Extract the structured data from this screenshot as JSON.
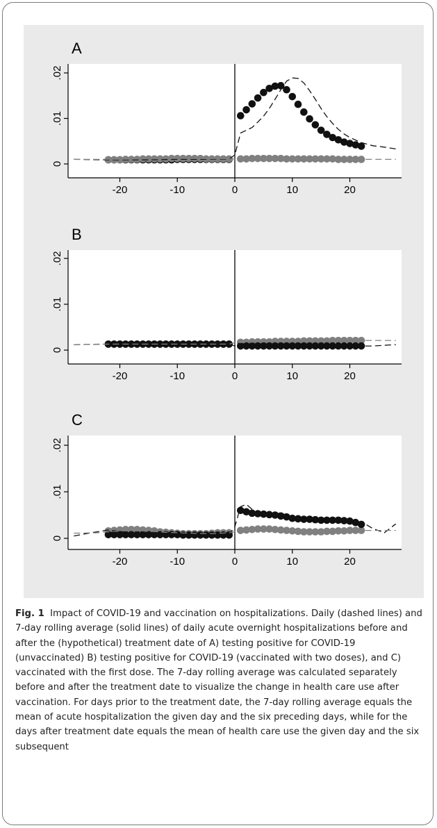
{
  "figure": {
    "caption_label": "Fig. 1",
    "caption_text": "Impact of COVID-19 and vaccination on hospitalizations. Daily (dashed lines) and 7-day rolling average (solid lines) of daily acute overnight hospitalizations before and after the (hypothetical) treatment date of A) testing positive for COVID-19 (unvaccinated) B) testing positive for COVID-19 (vaccinated with two doses), and C) vaccinated with the first dose. The 7-day rolling average was calculated separately before and after the treatment date to visualize the change in health care use after vaccination. For days prior to the treatment date, the 7-day rolling average equals the mean of acute hospitalization the given day and the six preceding days, while for the days after treatment date equals the mean of health care use the given day and the six subsequent"
  },
  "colors": {
    "dark_series": "#111111",
    "gray_series": "#808080",
    "panel_bg": "#eaeaea",
    "plot_bg": "#ffffff"
  },
  "chart_data": [
    {
      "type": "scatter",
      "panel": "A",
      "xlim": [
        -29,
        29
      ],
      "ylim": [
        0,
        0.02
      ],
      "xticks": [
        -20,
        -10,
        0,
        10,
        20
      ],
      "xtick_labels": [
        "-20",
        "-10",
        "0",
        "10",
        "20"
      ],
      "yticks": [
        0,
        0.01,
        0.02
      ],
      "ytick_labels": [
        "0",
        ".01",
        ".02"
      ],
      "treatment_line_x": 0,
      "series": [
        {
          "style": "dots",
          "color": "dark",
          "x": [
            -22,
            -21,
            -20,
            -19,
            -18,
            -17,
            -16,
            -15,
            -14,
            -13,
            -12,
            -11,
            -10,
            -9,
            -8,
            -7,
            -6,
            -5,
            -4,
            -3,
            -2,
            -1,
            1,
            2,
            3,
            4,
            5,
            6,
            7,
            8,
            9,
            10,
            11,
            12,
            13,
            14,
            15,
            16,
            17,
            18,
            19,
            20,
            21,
            22
          ],
          "y": [
            0.0009,
            0.0009,
            0.0009,
            0.0009,
            0.0009,
            0.0009,
            0.0009,
            0.0009,
            0.0009,
            0.0009,
            0.0009,
            0.0009,
            0.001,
            0.001,
            0.001,
            0.001,
            0.001,
            0.001,
            0.001,
            0.001,
            0.001,
            0.001,
            0.0106,
            0.0119,
            0.0132,
            0.0145,
            0.0157,
            0.0166,
            0.0171,
            0.0172,
            0.0163,
            0.0148,
            0.0131,
            0.0114,
            0.0099,
            0.0086,
            0.0074,
            0.0065,
            0.0058,
            0.0053,
            0.0048,
            0.0045,
            0.0042,
            0.0039
          ]
        },
        {
          "style": "dots",
          "color": "gray",
          "x": [
            -22,
            -21,
            -20,
            -19,
            -18,
            -17,
            -16,
            -15,
            -14,
            -13,
            -12,
            -11,
            -10,
            -9,
            -8,
            -7,
            -6,
            -5,
            -4,
            -3,
            -2,
            -1,
            1,
            2,
            3,
            4,
            5,
            6,
            7,
            8,
            9,
            10,
            11,
            12,
            13,
            14,
            15,
            16,
            17,
            18,
            19,
            20,
            21,
            22
          ],
          "y": [
            0.0009,
            0.0009,
            0.0009,
            0.001,
            0.001,
            0.001,
            0.0011,
            0.0011,
            0.0011,
            0.0011,
            0.0011,
            0.0012,
            0.0012,
            0.0012,
            0.0012,
            0.0012,
            0.0012,
            0.0011,
            0.0011,
            0.0011,
            0.0011,
            0.0011,
            0.0011,
            0.0011,
            0.0012,
            0.0012,
            0.0012,
            0.0012,
            0.0012,
            0.0012,
            0.0011,
            0.0011,
            0.0011,
            0.0011,
            0.0011,
            0.0011,
            0.0011,
            0.0011,
            0.0011,
            0.001,
            0.001,
            0.001,
            0.001,
            0.001
          ]
        },
        {
          "style": "dashed",
          "color": "dark",
          "x": [
            -28,
            -22,
            -15,
            -10,
            -5,
            -1,
            0,
            1,
            2,
            3,
            4,
            5,
            6,
            7,
            8,
            9,
            10,
            11,
            12,
            13,
            14,
            15,
            16,
            17,
            18,
            19,
            20,
            22,
            24,
            26,
            28
          ],
          "y": [
            0.001,
            0.0009,
            0.0009,
            0.001,
            0.001,
            0.001,
            0.002,
            0.0068,
            0.0074,
            0.008,
            0.0092,
            0.0105,
            0.0122,
            0.0142,
            0.0163,
            0.0182,
            0.0189,
            0.0188,
            0.0178,
            0.0161,
            0.0142,
            0.0122,
            0.0104,
            0.0089,
            0.0076,
            0.0066,
            0.0058,
            0.0047,
            0.004,
            0.0037,
            0.0033
          ]
        },
        {
          "style": "dashed",
          "color": "gray",
          "x": [
            -28,
            -20,
            -10,
            -1,
            0,
            5,
            10,
            15,
            20,
            25,
            28
          ],
          "y": [
            0.001,
            0.001,
            0.0012,
            0.0011,
            0.0011,
            0.0012,
            0.0011,
            0.0011,
            0.001,
            0.001,
            0.001
          ]
        }
      ]
    },
    {
      "type": "scatter",
      "panel": "B",
      "xlim": [
        -29,
        29
      ],
      "ylim": [
        0,
        0.02
      ],
      "xticks": [
        -20,
        -10,
        0,
        10,
        20
      ],
      "xtick_labels": [
        "-20",
        "-10",
        "0",
        "10",
        "20"
      ],
      "yticks": [
        0,
        0.01,
        0.02
      ],
      "ytick_labels": [
        "0",
        ".01",
        ".02"
      ],
      "treatment_line_x": 0,
      "series": [
        {
          "style": "dots",
          "color": "gray",
          "x": [
            -22,
            -21,
            -20,
            -19,
            -18,
            -17,
            -16,
            -15,
            -14,
            -13,
            -12,
            -11,
            -10,
            -9,
            -8,
            -7,
            -6,
            -5,
            -4,
            -3,
            -2,
            -1,
            1,
            2,
            3,
            4,
            5,
            6,
            7,
            8,
            9,
            10,
            11,
            12,
            13,
            14,
            15,
            16,
            17,
            18,
            19,
            20,
            21,
            22
          ],
          "y": [
            0.0013,
            0.0013,
            0.0013,
            0.0013,
            0.0013,
            0.0013,
            0.0013,
            0.0013,
            0.0013,
            0.0013,
            0.0013,
            0.0013,
            0.0013,
            0.0013,
            0.0013,
            0.0013,
            0.0013,
            0.0013,
            0.0013,
            0.0013,
            0.0013,
            0.0013,
            0.0017,
            0.0017,
            0.0018,
            0.0018,
            0.0018,
            0.0018,
            0.0019,
            0.0019,
            0.0019,
            0.0019,
            0.0019,
            0.002,
            0.002,
            0.002,
            0.002,
            0.002,
            0.0021,
            0.0021,
            0.0021,
            0.0021,
            0.0021,
            0.0021
          ]
        },
        {
          "style": "dots",
          "color": "dark",
          "x": [
            -22,
            -21,
            -20,
            -19,
            -18,
            -17,
            -16,
            -15,
            -14,
            -13,
            -12,
            -11,
            -10,
            -9,
            -8,
            -7,
            -6,
            -5,
            -4,
            -3,
            -2,
            -1,
            1,
            2,
            3,
            4,
            5,
            6,
            7,
            8,
            9,
            10,
            11,
            12,
            13,
            14,
            15,
            16,
            17,
            18,
            19,
            20,
            21,
            22
          ],
          "y": [
            0.0013,
            0.0013,
            0.0013,
            0.0013,
            0.0013,
            0.0013,
            0.0013,
            0.0013,
            0.0013,
            0.0013,
            0.0013,
            0.0013,
            0.0013,
            0.0013,
            0.0013,
            0.0013,
            0.0013,
            0.0013,
            0.0013,
            0.0013,
            0.0013,
            0.0013,
            0.0009,
            0.0009,
            0.0009,
            0.0009,
            0.0009,
            0.0009,
            0.0009,
            0.0009,
            0.0009,
            0.0009,
            0.0009,
            0.0009,
            0.0009,
            0.0009,
            0.0009,
            0.0009,
            0.0009,
            0.0009,
            0.0009,
            0.0009,
            0.0009,
            0.0009
          ]
        },
        {
          "style": "dashed",
          "color": "dark",
          "x": [
            -28,
            -22,
            -15,
            -10,
            -5,
            -1,
            0,
            5,
            10,
            15,
            20,
            24,
            28
          ],
          "y": [
            0.0012,
            0.0013,
            0.0013,
            0.0013,
            0.0013,
            0.0013,
            0.0009,
            0.0009,
            0.0009,
            0.0009,
            0.0009,
            0.0009,
            0.0012
          ]
        },
        {
          "style": "dashed",
          "color": "gray",
          "x": [
            -28,
            -22,
            -15,
            -10,
            -5,
            -1,
            0,
            5,
            10,
            15,
            20,
            24,
            28
          ],
          "y": [
            0.0012,
            0.0013,
            0.0013,
            0.0013,
            0.0013,
            0.0013,
            0.0016,
            0.0018,
            0.0019,
            0.002,
            0.0021,
            0.0021,
            0.0021
          ]
        }
      ]
    },
    {
      "type": "scatter",
      "panel": "C",
      "xlim": [
        -29,
        29
      ],
      "ylim": [
        0,
        0.02
      ],
      "xticks": [
        -20,
        -10,
        0,
        10,
        20
      ],
      "xtick_labels": [
        "-20",
        "-10",
        "0",
        "10",
        "20"
      ],
      "yticks": [
        0,
        0.01,
        0.02
      ],
      "ytick_labels": [
        "0",
        ".01",
        ".02"
      ],
      "treatment_line_x": 0,
      "series": [
        {
          "style": "dots",
          "color": "gray",
          "x": [
            -22,
            -21,
            -20,
            -19,
            -18,
            -17,
            -16,
            -15,
            -14,
            -13,
            -12,
            -11,
            -10,
            -9,
            -8,
            -7,
            -6,
            -5,
            -4,
            -3,
            -2,
            -1,
            1,
            2,
            3,
            4,
            5,
            6,
            7,
            8,
            9,
            10,
            11,
            12,
            13,
            14,
            15,
            16,
            17,
            18,
            19,
            20,
            21,
            22
          ],
          "y": [
            0.0016,
            0.0017,
            0.0018,
            0.0019,
            0.0019,
            0.0019,
            0.0018,
            0.0017,
            0.0016,
            0.0014,
            0.0013,
            0.0012,
            0.0011,
            0.001,
            0.001,
            0.001,
            0.001,
            0.001,
            0.0011,
            0.0012,
            0.0012,
            0.0012,
            0.0017,
            0.0018,
            0.0019,
            0.002,
            0.002,
            0.002,
            0.0019,
            0.0018,
            0.0017,
            0.0016,
            0.0015,
            0.0014,
            0.0014,
            0.0014,
            0.0014,
            0.0015,
            0.0015,
            0.0016,
            0.0016,
            0.0017,
            0.0017,
            0.0017
          ]
        },
        {
          "style": "dots",
          "color": "dark",
          "x": [
            -22,
            -21,
            -20,
            -19,
            -18,
            -17,
            -16,
            -15,
            -14,
            -13,
            -12,
            -11,
            -10,
            -9,
            -8,
            -7,
            -6,
            -5,
            -4,
            -3,
            -2,
            -1,
            1,
            2,
            3,
            4,
            5,
            6,
            7,
            8,
            9,
            10,
            11,
            12,
            13,
            14,
            15,
            16,
            17,
            18,
            19,
            20,
            21,
            22
          ],
          "y": [
            0.0008,
            0.0008,
            0.0008,
            0.0008,
            0.0008,
            0.0008,
            0.0008,
            0.0008,
            0.0008,
            0.0008,
            0.0008,
            0.0008,
            0.0008,
            0.0007,
            0.0007,
            0.0007,
            0.0007,
            0.0007,
            0.0007,
            0.0007,
            0.0007,
            0.0007,
            0.006,
            0.0057,
            0.0054,
            0.0053,
            0.0052,
            0.0051,
            0.005,
            0.0048,
            0.0046,
            0.0043,
            0.0042,
            0.0041,
            0.0041,
            0.004,
            0.0039,
            0.0039,
            0.0039,
            0.0039,
            0.0038,
            0.0037,
            0.0034,
            0.003
          ]
        },
        {
          "style": "dashed",
          "color": "dark",
          "x": [
            -28,
            -25,
            -22,
            -18,
            -14,
            -10,
            -6,
            -2,
            -1,
            0,
            1,
            2,
            4,
            6,
            8,
            10,
            12,
            14,
            16,
            18,
            20,
            22,
            24,
            26,
            28
          ],
          "y": [
            0.0005,
            0.0012,
            0.0018,
            0.0012,
            0.0009,
            0.0008,
            0.0007,
            0.0007,
            0.0007,
            0.0025,
            0.0068,
            0.0073,
            0.0052,
            0.0049,
            0.0055,
            0.0043,
            0.0044,
            0.0038,
            0.0041,
            0.0042,
            0.0033,
            0.0036,
            0.0021,
            0.0012,
            0.0031
          ]
        },
        {
          "style": "dashed",
          "color": "gray",
          "x": [
            -28,
            -24,
            -20,
            -16,
            -12,
            -8,
            -4,
            -1,
            0,
            4,
            8,
            12,
            16,
            20,
            24,
            28
          ],
          "y": [
            0.0011,
            0.0012,
            0.0016,
            0.0016,
            0.0013,
            0.0011,
            0.001,
            0.0012,
            0.0014,
            0.0019,
            0.0018,
            0.0015,
            0.0015,
            0.0017,
            0.0017,
            0.0017
          ]
        }
      ]
    }
  ]
}
